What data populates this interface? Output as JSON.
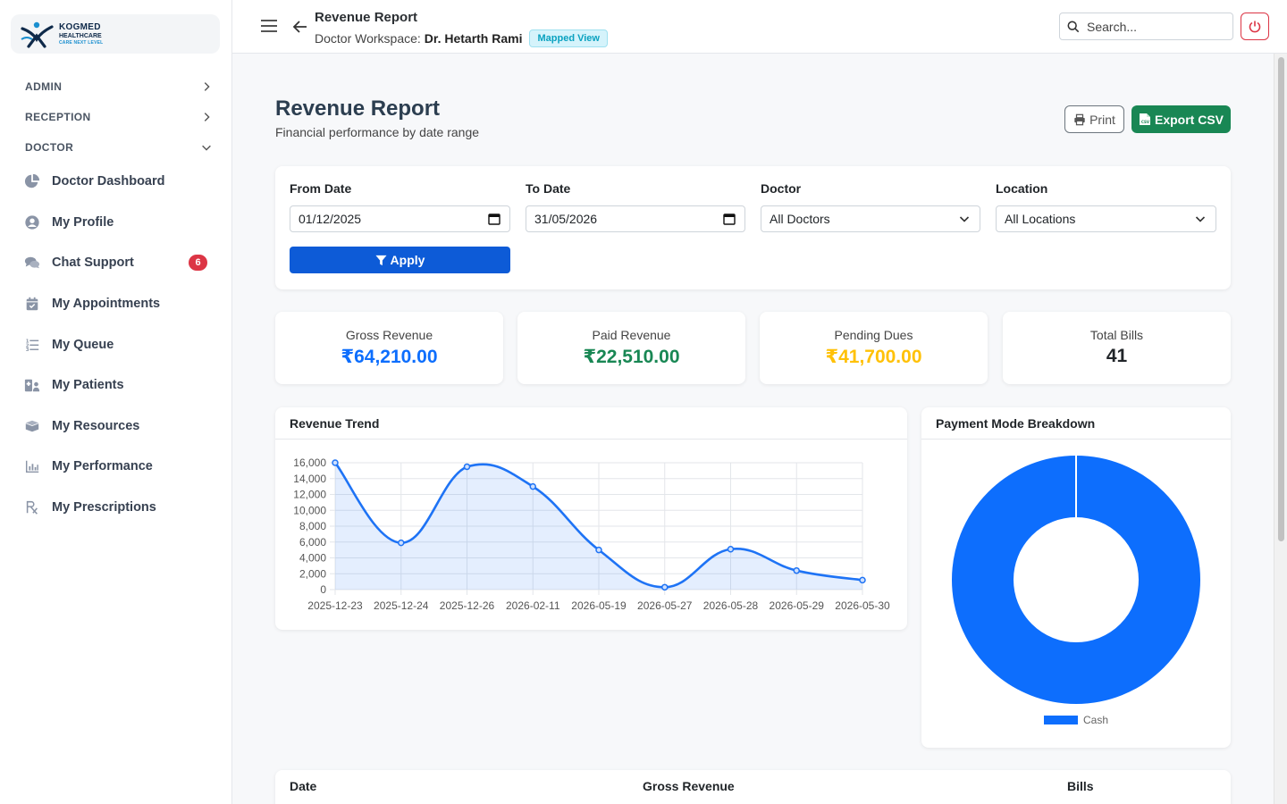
{
  "brand": {
    "line1": "KOGMED",
    "line2": "HEALTHCARE",
    "tagline": "CARE NEXT LEVEL"
  },
  "sidebar": {
    "sections": [
      {
        "label": "ADMIN",
        "state": "collapsed"
      },
      {
        "label": "RECEPTION",
        "state": "collapsed"
      },
      {
        "label": "DOCTOR",
        "state": "expanded"
      }
    ],
    "items": [
      {
        "label": "Doctor Dashboard",
        "icon": "pie-chart-icon"
      },
      {
        "label": "My Profile",
        "icon": "user-circle-icon"
      },
      {
        "label": "Chat Support",
        "icon": "chat-bubbles-icon",
        "badge": "6"
      },
      {
        "label": "My Appointments",
        "icon": "calendar-check-icon"
      },
      {
        "label": "My Queue",
        "icon": "numbered-list-icon"
      },
      {
        "label": "My Patients",
        "icon": "hospital-user-icon"
      },
      {
        "label": "My Resources",
        "icon": "box-open-icon"
      },
      {
        "label": "My Performance",
        "icon": "bar-chart-icon"
      },
      {
        "label": "My Prescriptions",
        "icon": "prescription-icon"
      }
    ]
  },
  "topbar": {
    "title": "Revenue Report",
    "workspace_prefix": "Doctor Workspace:",
    "doctor_name": "Dr. Hetarth Rami",
    "view_badge": "Mapped View",
    "search_placeholder": "Search..."
  },
  "page": {
    "title": "Revenue Report",
    "subtitle": "Financial performance by date range",
    "print_label": "Print",
    "export_label": "Export CSV"
  },
  "filters": {
    "from_label": "From Date",
    "from_value": "01/12/2025",
    "to_label": "To Date",
    "to_value": "31/05/2026",
    "doctor_label": "Doctor",
    "doctor_value": "All Doctors",
    "location_label": "Location",
    "location_value": "All Locations",
    "apply_label": "Apply"
  },
  "stats": [
    {
      "label": "Gross Revenue",
      "value": "₹64,210.00",
      "color": "#0d6efd"
    },
    {
      "label": "Paid Revenue",
      "value": "₹22,510.00",
      "color": "#198754"
    },
    {
      "label": "Pending Dues",
      "value": "₹41,700.00",
      "color": "#ffc107"
    },
    {
      "label": "Total Bills",
      "value": "41",
      "color": "#212529"
    }
  ],
  "charts": {
    "trend_title": "Revenue Trend",
    "pie_title": "Payment Mode Breakdown"
  },
  "chart_data": [
    {
      "type": "line",
      "x": [
        "2025-12-23",
        "2025-12-24",
        "2025-12-26",
        "2026-02-11",
        "2026-05-19",
        "2026-05-27",
        "2026-05-28",
        "2026-05-29",
        "2026-05-30"
      ],
      "series": [
        {
          "values": [
            16000,
            5900,
            15500,
            13000,
            5000,
            300,
            5100,
            2400,
            1200
          ]
        }
      ],
      "ylim": [
        0,
        16000
      ],
      "yticks": [
        0,
        2000,
        4000,
        6000,
        8000,
        10000,
        12000,
        14000,
        16000
      ],
      "fill": true,
      "grid": true,
      "color": "#1e73f5"
    },
    {
      "type": "pie",
      "donut": true,
      "labels": [
        "Cash"
      ],
      "values": [
        100
      ],
      "colors": [
        "#0d6efd"
      ],
      "legend": "bottom"
    }
  ],
  "table": {
    "headers": [
      "Date",
      "Gross Revenue",
      "Bills"
    ]
  },
  "colors": {
    "primary": "#0d5bd7",
    "success": "#198754",
    "danger": "#dc3545"
  }
}
